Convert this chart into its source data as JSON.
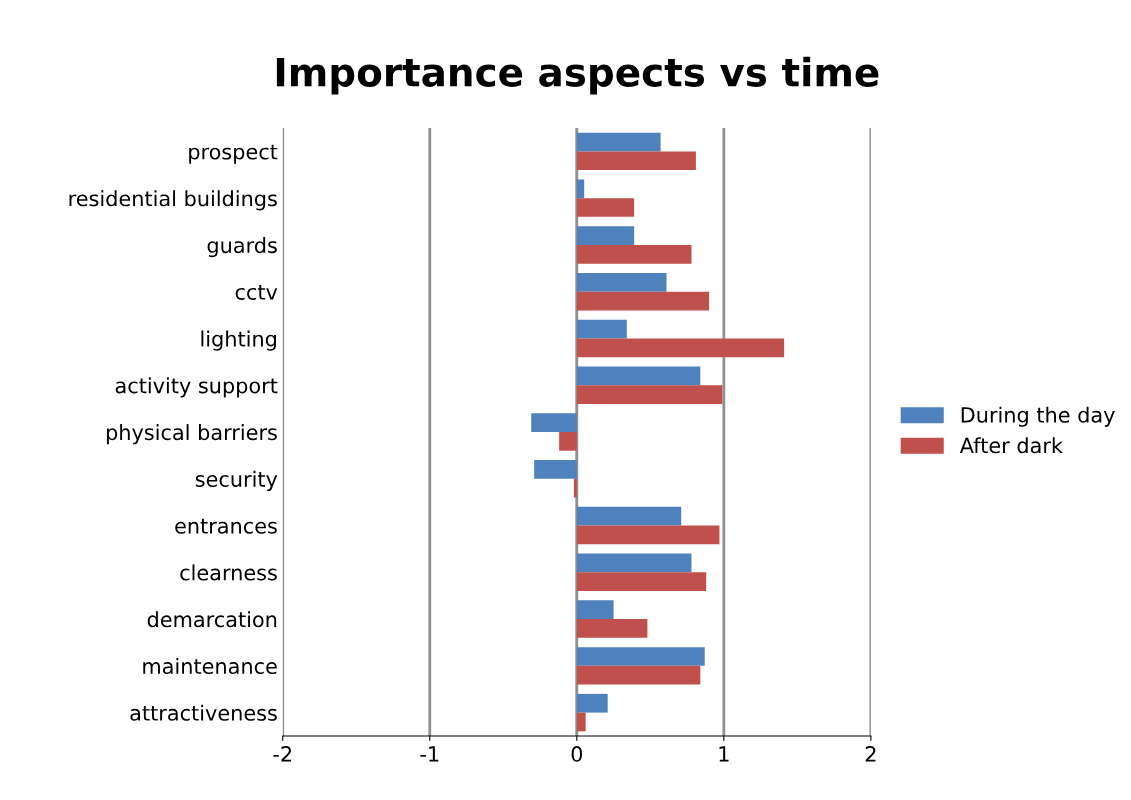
{
  "chart_data": {
    "type": "bar",
    "orientation": "horizontal",
    "title": "Importance aspects vs time",
    "categories": [
      "prospect",
      "residential buildings",
      "guards",
      "cctv",
      "lighting",
      "activity support",
      "physical barriers",
      "security",
      "entrances",
      "clearness",
      "demarcation",
      "maintenance",
      "attractiveness"
    ],
    "series": [
      {
        "name": "During the day",
        "color": "#4f81bd",
        "values": [
          0.57,
          0.05,
          0.39,
          0.61,
          0.34,
          0.84,
          -0.31,
          -0.29,
          0.71,
          0.78,
          0.25,
          0.87,
          0.21
        ]
      },
      {
        "name": "After dark",
        "color": "#c0504d",
        "values": [
          0.81,
          0.39,
          0.78,
          0.9,
          1.41,
          0.99,
          -0.12,
          -0.02,
          0.97,
          0.88,
          0.48,
          0.84,
          0.06
        ]
      }
    ],
    "xlim": [
      -2,
      2
    ],
    "xticks": [
      -2,
      -1,
      0,
      1,
      2
    ],
    "grid": "x",
    "legend": "right"
  }
}
